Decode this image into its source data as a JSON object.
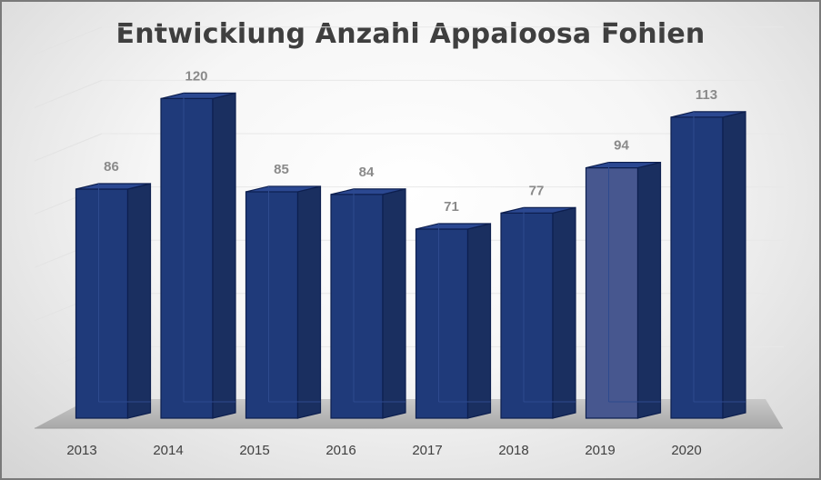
{
  "chart_data": {
    "type": "bar",
    "title": "Entwicklung Anzahl Appaloosa Fohlen",
    "categories": [
      "2013",
      "2014",
      "2015",
      "2016",
      "2017",
      "2018",
      "2019",
      "2020"
    ],
    "values": [
      86,
      120,
      85,
      84,
      71,
      77,
      94,
      113
    ],
    "xlabel": "",
    "ylabel": "",
    "ylim": [
      0,
      140
    ],
    "grid": true,
    "legend": "none",
    "data_labels": true,
    "style": "3d-column",
    "colors": {
      "bar": "#1f3a7a",
      "bar_highlight": "#47578f",
      "floor": "#b0b0b0"
    }
  }
}
